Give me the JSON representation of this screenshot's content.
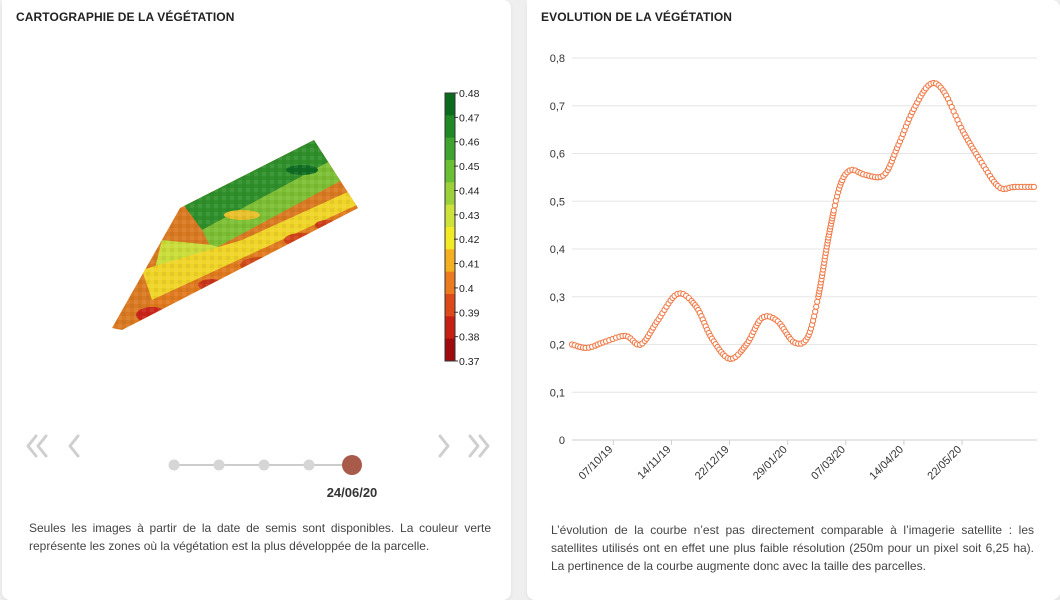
{
  "left_panel": {
    "title": "CARTOGRAPHIE DE LA VÉGÉTATION",
    "legend_labels": [
      "0.48",
      "0.47",
      "0.46",
      "0.45",
      "0.44",
      "0.43",
      "0.42",
      "0.41",
      "0.4",
      "0.39",
      "0.38",
      "0.37"
    ],
    "legend_colors": [
      "#0a6b1e",
      "#1f8a25",
      "#3fa52e",
      "#6bbf32",
      "#9bd03a",
      "#cde23a",
      "#f2ea25",
      "#f4b020",
      "#ec7a1e",
      "#dd4a1a",
      "#c62015",
      "#9e0a0e"
    ],
    "timeline": {
      "dots": 5,
      "active_index": 4,
      "active_color": "#a85b4b",
      "selected_date": "24/06/20"
    },
    "nav_icons": [
      "double-chevron-left-icon",
      "chevron-left-icon",
      "chevron-right-icon",
      "double-chevron-right-icon"
    ],
    "description": "Seules les images à partir de la date de semis sont disponibles. La couleur verte représente les zones où la végétation est la plus développée de la parcelle."
  },
  "right_panel": {
    "title": "EVOLUTION DE LA VÉGÉTATION",
    "description": "L’évolution de la courbe n’est pas directement comparable à l’imagerie satellite : les satellites utilisés ont en effet une plus faible résolution (250m pour un pixel soit 6,25 ha). La pertinence de la courbe augmente donc avec la taille des parcelles."
  },
  "chart_data": {
    "type": "line",
    "title": "",
    "xlabel": "",
    "ylabel": "",
    "ylim": [
      0,
      0.8
    ],
    "y_ticks": [
      "0",
      "0,1",
      "0,2",
      "0,3",
      "0,4",
      "0,5",
      "0,6",
      "0,7",
      "0,8"
    ],
    "x_ticks": [
      "07/10/19",
      "14/11/19",
      "22/12/19",
      "29/01/20",
      "07/03/20",
      "14/04/20",
      "22/05/20"
    ],
    "x_range": [
      "2019-09-10",
      "2020-07-10"
    ],
    "grid": true,
    "color": "#f07c4a",
    "series": [
      {
        "x": [
          "2019-09-10",
          "2019-09-20",
          "2019-10-01",
          "2019-10-15",
          "2019-10-25",
          "2019-11-05",
          "2019-11-18",
          "2019-11-30",
          "2019-12-10",
          "2019-12-22",
          "2020-01-02",
          "2020-01-12",
          "2020-01-22",
          "2020-02-02",
          "2020-02-11",
          "2020-02-18",
          "2020-02-25",
          "2020-03-03",
          "2020-03-10",
          "2020-03-20",
          "2020-04-01",
          "2020-04-10",
          "2020-04-20",
          "2020-05-01",
          "2020-05-10",
          "2020-05-22",
          "2020-06-02",
          "2020-06-15",
          "2020-06-25",
          "2020-07-08"
        ],
        "y": [
          0.2,
          0.193,
          0.205,
          0.218,
          0.2,
          0.25,
          0.306,
          0.28,
          0.215,
          0.17,
          0.2,
          0.255,
          0.25,
          0.205,
          0.215,
          0.3,
          0.43,
          0.53,
          0.565,
          0.555,
          0.555,
          0.615,
          0.69,
          0.745,
          0.73,
          0.65,
          0.59,
          0.53,
          0.53,
          0.53
        ]
      }
    ]
  }
}
